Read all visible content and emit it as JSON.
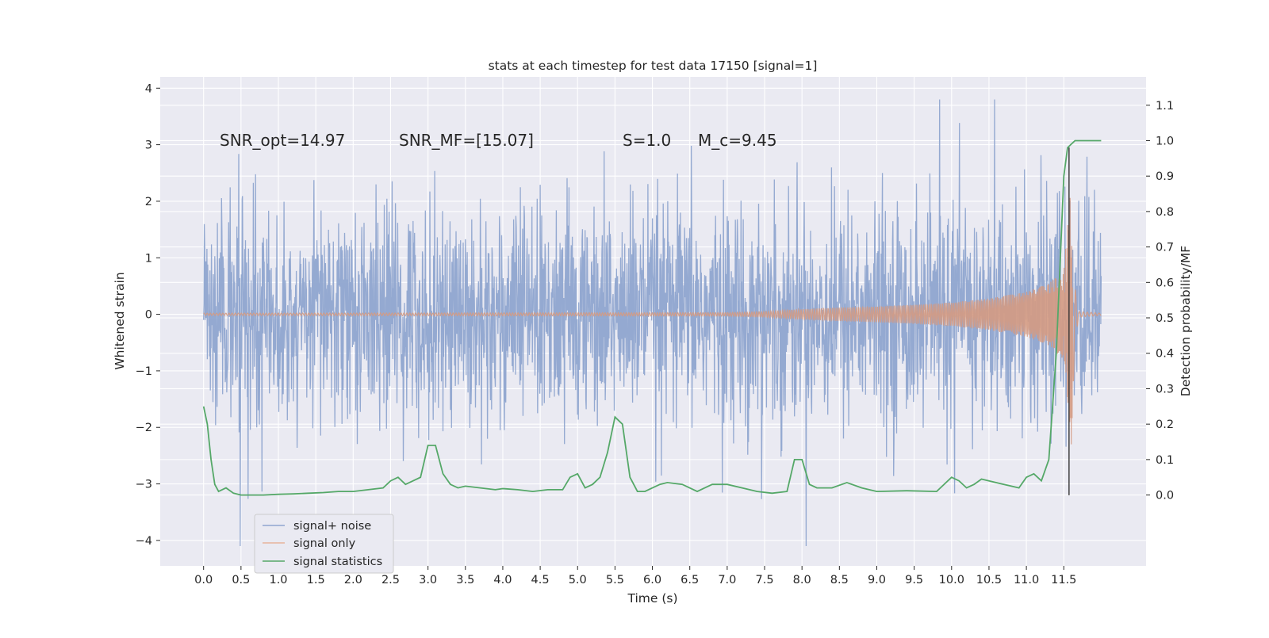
{
  "chart_data": {
    "type": "line",
    "title": "stats at each timestep for test data 17150 [signal=1]",
    "xlabel": "Time (s)",
    "ylabel": "Whitened strain",
    "ylabel_right": "Detection probability/MF",
    "xlim": [
      -0.58,
      12.6
    ],
    "ylim": [
      -4.45,
      4.2
    ],
    "ylim_right": [
      -0.2,
      1.18
    ],
    "x_ticks": [
      0.0,
      0.5,
      1.0,
      1.5,
      2.0,
      2.5,
      3.0,
      3.5,
      4.0,
      4.5,
      5.0,
      5.5,
      6.0,
      6.5,
      7.0,
      7.5,
      8.0,
      8.5,
      9.0,
      9.5,
      10.0,
      10.5,
      11.0,
      11.5
    ],
    "x_tick_labels": [
      "0.0",
      "0.5",
      "1.0",
      "1.5",
      "2.0",
      "2.5",
      "3.0",
      "3.5",
      "4.0",
      "4.5",
      "5.0",
      "5.5",
      "6.0",
      "6.5",
      "7.0",
      "7.5",
      "8.0",
      "8.5",
      "9.0",
      "9.5",
      "10.0",
      "10.5",
      "11.0",
      "11.5"
    ],
    "y_ticks": [
      -4,
      -3,
      -2,
      -1,
      0,
      1,
      2,
      3,
      4
    ],
    "y_tick_labels": [
      "−4",
      "−3",
      "−2",
      "−1",
      "0",
      "1",
      "2",
      "3",
      "4"
    ],
    "y_ticks_right": [
      0.0,
      0.1,
      0.2,
      0.3,
      0.4,
      0.5,
      0.6,
      0.7,
      0.8,
      0.9,
      1.0,
      1.1
    ],
    "y_tick_labels_right": [
      "0.0",
      "0.1",
      "0.2",
      "0.3",
      "0.4",
      "0.5",
      "0.6",
      "0.7",
      "0.8",
      "0.9",
      "1.0",
      "1.1"
    ],
    "grid": true,
    "legend_position": "bottom-left",
    "series": [
      {
        "name": "signal+ noise",
        "axis": "left",
        "color": "#8fa5cf",
        "description_values": {
          "t_range": [
            0.0,
            12.0
          ],
          "typical_envelope": [
            -1.7,
            1.7
          ],
          "peak_max": 3.8,
          "peak_min": -4.1
        }
      },
      {
        "name": "signal only",
        "axis": "left",
        "color": "#d9a38c",
        "envelope": {
          "x": [
            0.0,
            7.0,
            7.5,
            8.0,
            8.5,
            9.0,
            9.5,
            10.0,
            10.5,
            11.0,
            11.3,
            11.5,
            11.6,
            11.65,
            11.7,
            12.0
          ],
          "y": [
            0.02,
            0.03,
            0.05,
            0.09,
            0.12,
            0.14,
            0.17,
            0.21,
            0.28,
            0.4,
            0.55,
            0.8,
            2.3,
            0.5,
            0.05,
            0.02
          ]
        }
      },
      {
        "name": "signal statistics",
        "axis": "right",
        "color": "#55a868",
        "x": [
          0.0,
          0.05,
          0.1,
          0.15,
          0.2,
          0.3,
          0.4,
          0.5,
          0.6,
          0.8,
          1.0,
          1.2,
          1.4,
          1.6,
          1.8,
          2.0,
          2.2,
          2.4,
          2.5,
          2.6,
          2.7,
          2.8,
          2.9,
          3.0,
          3.1,
          3.2,
          3.3,
          3.4,
          3.5,
          3.7,
          3.9,
          4.0,
          4.2,
          4.4,
          4.6,
          4.8,
          4.9,
          5.0,
          5.1,
          5.2,
          5.3,
          5.4,
          5.5,
          5.6,
          5.7,
          5.8,
          5.9,
          6.0,
          6.1,
          6.2,
          6.4,
          6.6,
          6.7,
          6.8,
          7.0,
          7.2,
          7.3,
          7.4,
          7.6,
          7.8,
          7.9,
          8.0,
          8.1,
          8.2,
          8.4,
          8.6,
          8.8,
          9.0,
          9.4,
          9.8,
          10.0,
          10.1,
          10.2,
          10.3,
          10.4,
          10.5,
          10.7,
          10.9,
          11.0,
          11.1,
          11.2,
          11.3,
          11.4,
          11.5,
          11.55,
          11.6,
          11.65,
          11.7,
          11.8,
          12.0
        ],
        "y": [
          0.25,
          0.2,
          0.1,
          0.03,
          0.01,
          0.02,
          0.005,
          0.0,
          0.0,
          0.0,
          0.002,
          0.003,
          0.005,
          0.007,
          0.01,
          0.01,
          0.015,
          0.02,
          0.04,
          0.05,
          0.03,
          0.04,
          0.05,
          0.14,
          0.14,
          0.06,
          0.03,
          0.02,
          0.025,
          0.02,
          0.015,
          0.018,
          0.015,
          0.01,
          0.015,
          0.015,
          0.05,
          0.06,
          0.02,
          0.03,
          0.05,
          0.12,
          0.22,
          0.2,
          0.05,
          0.01,
          0.01,
          0.02,
          0.03,
          0.035,
          0.03,
          0.01,
          0.02,
          0.03,
          0.03,
          0.02,
          0.015,
          0.01,
          0.005,
          0.01,
          0.1,
          0.1,
          0.03,
          0.02,
          0.02,
          0.035,
          0.02,
          0.01,
          0.012,
          0.01,
          0.05,
          0.04,
          0.02,
          0.03,
          0.045,
          0.04,
          0.03,
          0.02,
          0.05,
          0.06,
          0.04,
          0.1,
          0.4,
          0.9,
          0.98,
          0.99,
          1.0,
          1.0,
          1.0,
          1.0
        ]
      }
    ],
    "annotations": [
      {
        "text": "SNR_opt=14.97",
        "x": 0.18,
        "y": 3.0
      },
      {
        "text": "SNR_MF=[15.07]",
        "x": 2.6,
        "y": 3.0
      },
      {
        "text": "S=1.0",
        "x": 5.6,
        "y": 3.0
      },
      {
        "text": "M_c=9.45",
        "x": 6.6,
        "y": 3.0
      }
    ]
  },
  "legend": {
    "items": [
      {
        "label": "signal+ noise",
        "color": "#8fa5cf"
      },
      {
        "label": "signal only",
        "color": "#e8b39b"
      },
      {
        "label": "signal statistics",
        "color": "#55a868"
      }
    ]
  },
  "colors": {
    "plot_bg": "#eaeaf2",
    "grid": "#ffffff",
    "noise": "#8fa5cf",
    "signal": "#d49a82",
    "stat": "#55a868",
    "marker": "#333333"
  }
}
